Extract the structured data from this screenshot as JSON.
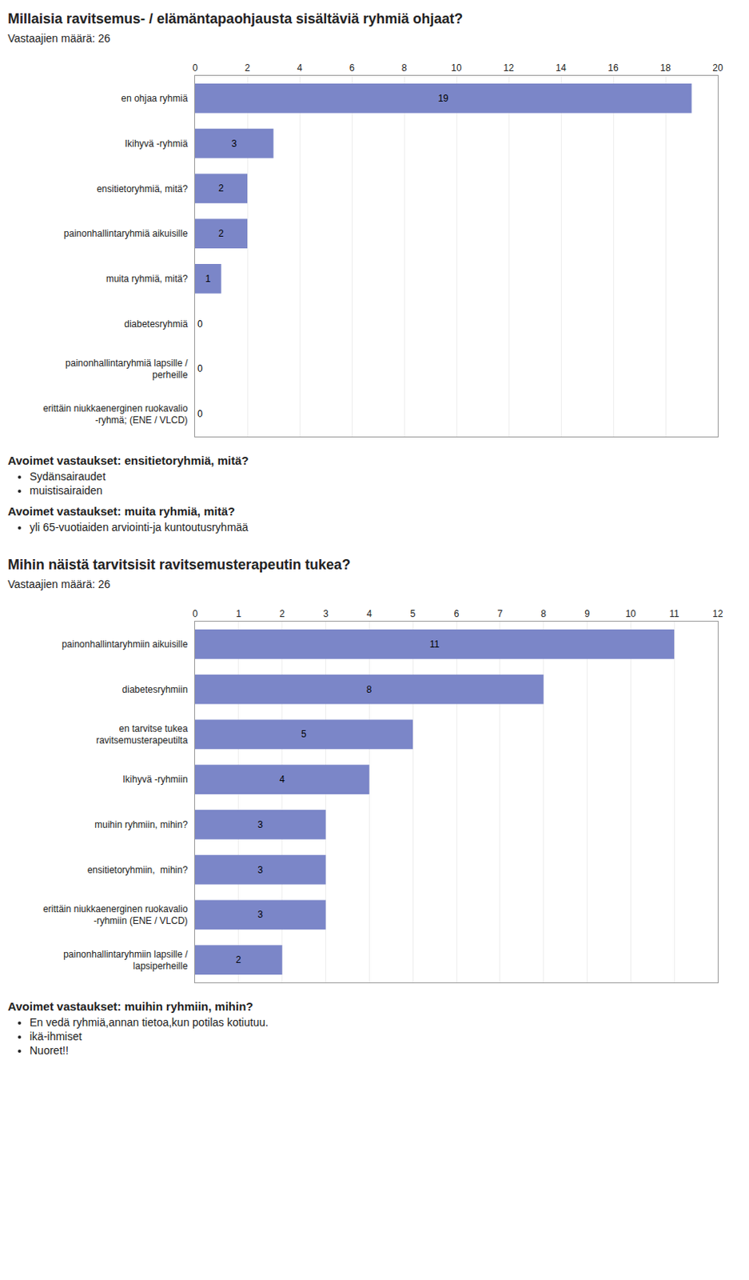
{
  "chart_data": [
    {
      "type": "bar",
      "orientation": "horizontal",
      "title": "Millaisia ravitsemus- / elämäntapaohjausta sisältäviä ryhmiä ohjaat?",
      "subtitle": "Vastaajien määrä: 26",
      "categories": [
        "en ohjaa ryhmiä",
        "Ikihyvä -ryhmiä",
        "ensitietoryhmiä, mitä?",
        "painonhallintaryhmiä aikuisille",
        "muita ryhmiä, mitä?",
        "diabetesryhmiä",
        "painonhallintaryhmiä lapsille /\nperheille",
        "erittäin niukkaenerginen ruokavalio\n-ryhmä; (ENE / VLCD)"
      ],
      "values": [
        19,
        3,
        2,
        2,
        1,
        0,
        0,
        0
      ],
      "color": "#7b86c8",
      "xlim": [
        0,
        20
      ],
      "xticks": [
        0,
        2,
        4,
        6,
        8,
        10,
        12,
        14,
        16,
        18,
        20
      ],
      "grid": true,
      "data_labels": true,
      "annotations": [
        {
          "title": "Avoimet vastaukset: ensitietoryhmiä, mitä?",
          "items": [
            "Sydänsairaudet",
            "muistisairaiden"
          ]
        },
        {
          "title": "Avoimet vastaukset: muita ryhmiä, mitä?",
          "items": [
            "yli 65-vuotiaiden arviointi-ja kuntoutusryhmää"
          ]
        }
      ]
    },
    {
      "type": "bar",
      "orientation": "horizontal",
      "title": "Mihin näistä tarvitsisit ravitsemusterapeutin tukea?",
      "subtitle": "Vastaajien määrä: 26",
      "categories": [
        "painonhallintaryhmiin aikuisille",
        "diabetesryhmiin",
        "en tarvitse tukea\nravitsemusterapeutilta",
        "Ikihyvä -ryhmiin",
        "muihin ryhmiin, mihin?",
        "ensitietoryhmiin,  mihin?",
        "erittäin niukkaenerginen ruokavalio\n-ryhmiin (ENE / VLCD)",
        "painonhallintaryhmiin lapsille /\nlapsiperheille"
      ],
      "values": [
        11,
        8,
        5,
        4,
        3,
        3,
        3,
        2
      ],
      "color": "#7b86c8",
      "xlim": [
        0,
        12
      ],
      "xticks": [
        0,
        1,
        2,
        3,
        4,
        5,
        6,
        7,
        8,
        9,
        10,
        11,
        12
      ],
      "grid": true,
      "data_labels": true,
      "annotations": [
        {
          "title": "Avoimet vastaukset: muihin ryhmiin, mihin?",
          "items": [
            "En vedä ryhmiä,annan tietoa,kun potilas kotiutuu.",
            "ikä-ihmiset",
            "Nuoret!!"
          ]
        }
      ]
    }
  ]
}
